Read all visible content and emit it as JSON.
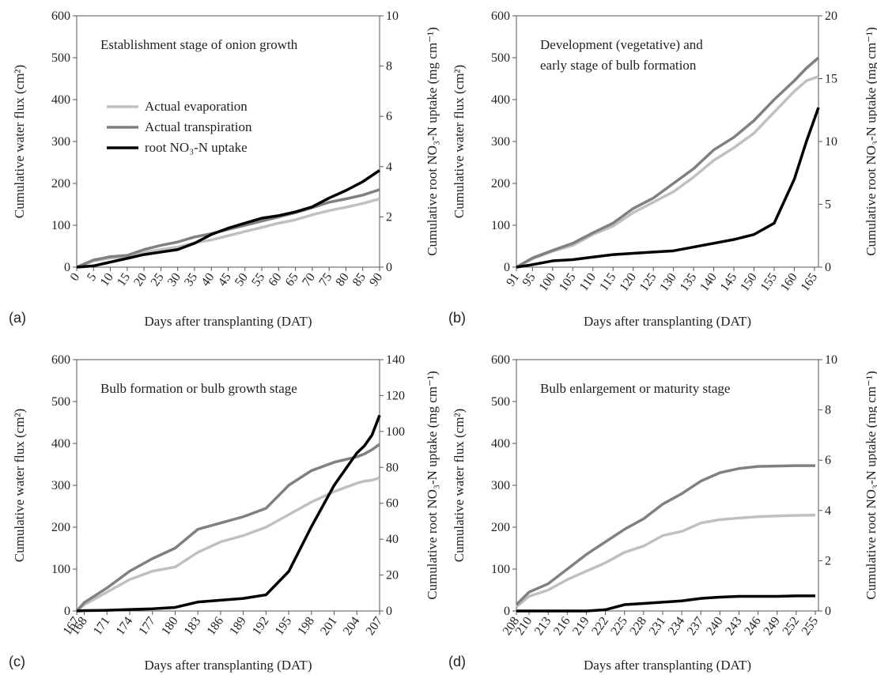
{
  "chart_data": [
    {
      "type": "line",
      "panel_label": "(a)",
      "annotation": [
        "Establishment stage of onion growth"
      ],
      "xlabel": "Days after transplanting (DAT)",
      "ylabel": "Cumulative water flux (cm²)",
      "y2label": "Cumulative root NO₃-N uptake (mg cm⁻¹)",
      "legend": "upper left",
      "x": [
        0,
        5,
        10,
        15,
        20,
        25,
        30,
        35,
        40,
        45,
        50,
        55,
        60,
        65,
        70,
        75,
        80,
        85,
        90
      ],
      "xlim": [
        0,
        90
      ],
      "xticks": [
        0,
        5,
        10,
        15,
        20,
        25,
        30,
        35,
        40,
        45,
        50,
        55,
        60,
        65,
        70,
        75,
        80,
        85,
        90
      ],
      "ylim": [
        0,
        600
      ],
      "yticks": [
        0,
        100,
        200,
        300,
        400,
        500,
        600
      ],
      "y2lim": [
        0,
        10
      ],
      "y2ticks": [
        0,
        2,
        4,
        6,
        8,
        10
      ],
      "series": [
        {
          "name": "Actual evaporation",
          "color": "#c0c0c0",
          "values": [
            0,
            15,
            22,
            25,
            35,
            42,
            48,
            58,
            65,
            75,
            85,
            95,
            105,
            113,
            125,
            135,
            143,
            152,
            163
          ]
        },
        {
          "name": "Actual transpiration",
          "color": "#808080",
          "values": [
            0,
            17,
            25,
            28,
            42,
            52,
            60,
            72,
            80,
            90,
            100,
            110,
            120,
            130,
            142,
            155,
            163,
            172,
            185
          ]
        },
        {
          "name": "root NO₃-N uptake",
          "color": "#000000",
          "axis": "y2",
          "values": [
            0,
            0.05,
            0.2,
            0.35,
            0.5,
            0.6,
            0.7,
            0.95,
            1.3,
            1.55,
            1.75,
            1.95,
            2.05,
            2.2,
            2.4,
            2.75,
            3.05,
            3.4,
            3.85
          ]
        }
      ]
    },
    {
      "type": "line",
      "panel_label": "(b)",
      "annotation": [
        "Development (vegetative) and",
        "early stage of bulb formation"
      ],
      "xlabel": "Days after transplanting (DAT)",
      "ylabel": "Cumulative water flux (cm²)",
      "y2label": "Cumulative root NO₃-N uptake (mg cm⁻¹)",
      "x": [
        91,
        95,
        100,
        105,
        110,
        115,
        120,
        125,
        130,
        135,
        140,
        145,
        150,
        155,
        160,
        163,
        166
      ],
      "xlim": [
        91,
        166
      ],
      "xticks": [
        91,
        95,
        100,
        105,
        110,
        115,
        120,
        125,
        130,
        135,
        140,
        145,
        150,
        155,
        160,
        165
      ],
      "ylim": [
        0,
        600
      ],
      "yticks": [
        0,
        100,
        200,
        300,
        400,
        500,
        600
      ],
      "y2lim": [
        0,
        20
      ],
      "y2ticks": [
        0,
        5,
        10,
        15,
        20
      ],
      "series": [
        {
          "color": "#c0c0c0",
          "values": [
            0,
            20,
            38,
            52,
            78,
            98,
            130,
            155,
            180,
            215,
            255,
            285,
            320,
            370,
            420,
            445,
            455
          ]
        },
        {
          "color": "#808080",
          "values": [
            0,
            22,
            40,
            57,
            82,
            105,
            140,
            165,
            200,
            235,
            280,
            310,
            350,
            400,
            445,
            475,
            500
          ]
        },
        {
          "color": "#000000",
          "axis": "y2",
          "values": [
            0,
            0.2,
            0.5,
            0.6,
            0.8,
            1.0,
            1.1,
            1.2,
            1.3,
            1.6,
            1.9,
            2.2,
            2.6,
            3.5,
            7,
            10,
            12.7
          ]
        }
      ]
    },
    {
      "type": "line",
      "panel_label": "(c)",
      "annotation": [
        "Bulb formation or bulb growth stage"
      ],
      "xlabel": "Days after transplanting (DAT)",
      "ylabel": "Cumulative water flux (cm²)",
      "y2label": "Cumulative root NO₃-N uptake (mg cm⁻¹)",
      "x": [
        167,
        168,
        171,
        174,
        177,
        180,
        183,
        186,
        189,
        192,
        195,
        198,
        201,
        204,
        205,
        206,
        207
      ],
      "xlim": [
        167,
        207
      ],
      "xticks": [
        167,
        168,
        171,
        174,
        177,
        180,
        183,
        186,
        189,
        192,
        195,
        198,
        201,
        204,
        207
      ],
      "ylim": [
        0,
        600
      ],
      "yticks": [
        0,
        100,
        200,
        300,
        400,
        500,
        600
      ],
      "y2lim": [
        0,
        140
      ],
      "y2ticks": [
        0,
        20,
        40,
        60,
        80,
        100,
        120,
        140
      ],
      "series": [
        {
          "color": "#c0c0c0",
          "values": [
            0,
            15,
            45,
            75,
            95,
            105,
            140,
            165,
            180,
            200,
            230,
            260,
            285,
            305,
            310,
            312,
            318
          ]
        },
        {
          "color": "#808080",
          "values": [
            0,
            20,
            55,
            95,
            125,
            150,
            195,
            210,
            225,
            245,
            300,
            335,
            355,
            368,
            375,
            385,
            398
          ]
        },
        {
          "color": "#000000",
          "axis": "y2",
          "values": [
            0,
            0.2,
            0.4,
            0.8,
            1.2,
            2,
            5,
            6,
            7,
            9,
            22,
            47,
            70,
            88,
            92,
            98,
            109
          ]
        }
      ]
    },
    {
      "type": "line",
      "panel_label": "(d)",
      "annotation": [
        "Bulb enlargement or maturity stage"
      ],
      "xlabel": "Days after transplanting (DAT)",
      "ylabel": "Cumulative water flux (cm²)",
      "y2label": "Cumulative root NO₃-N uptake (mg cm⁻¹)",
      "x": [
        208,
        210,
        213,
        216,
        219,
        222,
        225,
        228,
        231,
        234,
        237,
        240,
        243,
        246,
        249,
        252,
        255
      ],
      "xlim": [
        208,
        255.5
      ],
      "xticks": [
        208,
        210,
        213,
        216,
        219,
        222,
        225,
        228,
        231,
        234,
        237,
        240,
        243,
        246,
        249,
        252,
        255
      ],
      "ylim": [
        0,
        600
      ],
      "yticks": [
        0,
        100,
        200,
        300,
        400,
        500,
        600
      ],
      "y2lim": [
        0,
        10
      ],
      "y2ticks": [
        0,
        2,
        4,
        6,
        8,
        10
      ],
      "series": [
        {
          "color": "#c0c0c0",
          "values": [
            10,
            35,
            50,
            75,
            95,
            115,
            140,
            155,
            180,
            190,
            210,
            218,
            222,
            225,
            227,
            228,
            229
          ]
        },
        {
          "color": "#808080",
          "values": [
            15,
            45,
            65,
            100,
            135,
            165,
            195,
            220,
            255,
            280,
            310,
            330,
            340,
            345,
            346,
            347,
            347
          ]
        },
        {
          "color": "#000000",
          "axis": "y2",
          "values": [
            0,
            0,
            0,
            0,
            0,
            0.05,
            0.25,
            0.3,
            0.35,
            0.4,
            0.5,
            0.55,
            0.58,
            0.58,
            0.58,
            0.6,
            0.6
          ]
        }
      ]
    }
  ]
}
